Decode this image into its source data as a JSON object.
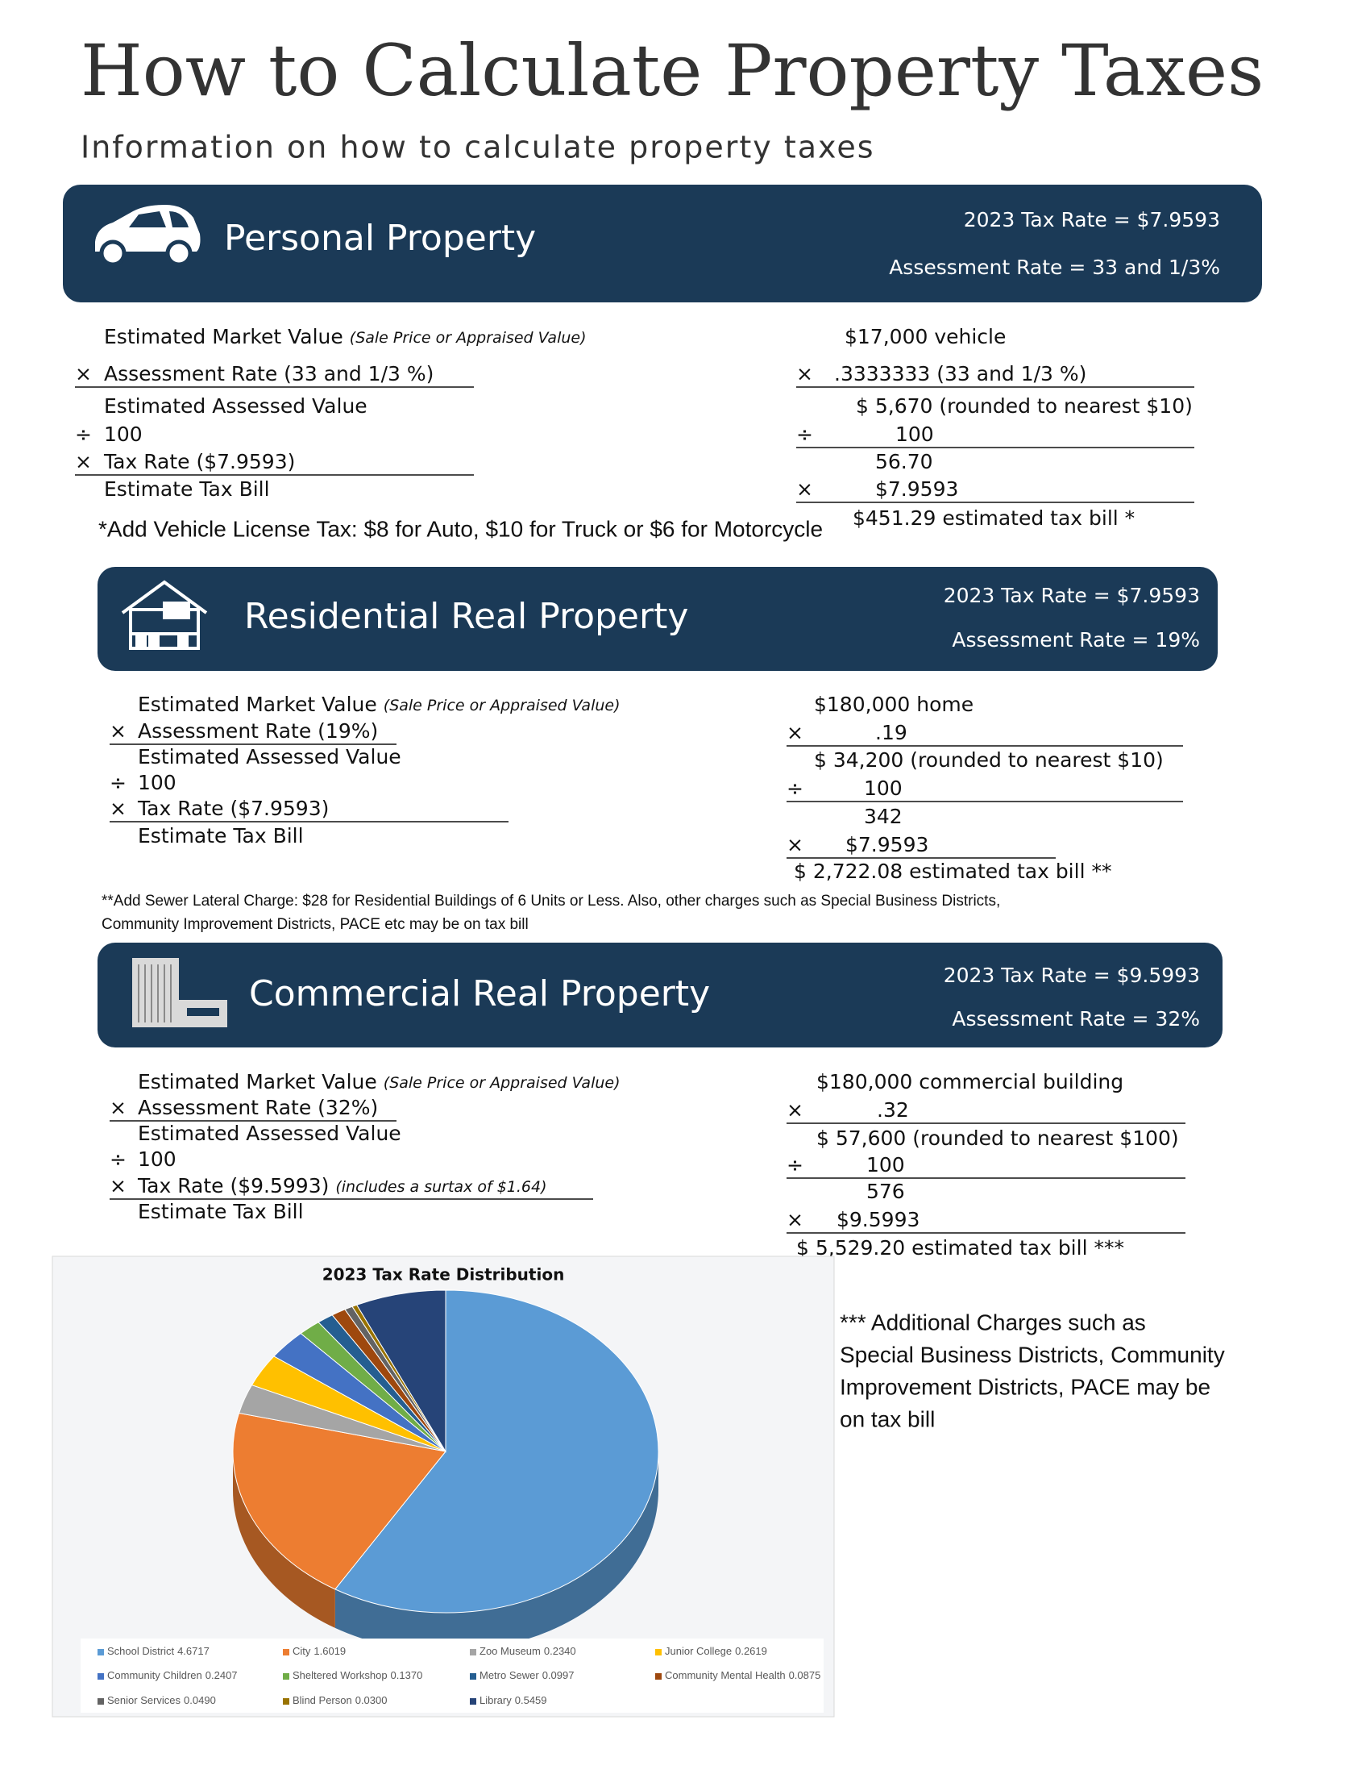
{
  "header": {
    "title": "How to Calculate Property Taxes",
    "subtitle": "Information on how to calculate property taxes"
  },
  "sections": [
    {
      "title": "Personal Property",
      "tax_rate": "2023 Tax Rate = $7.9593",
      "assessment_rate": "Assessment Rate = 33 and 1/3%",
      "left": [
        {
          "text": "Estimated Market Value",
          "note": "(Sale Price or Appraised Value)"
        },
        {
          "op": "×",
          "text": "Assessment Rate (33 and 1/3 %)"
        },
        {
          "text": "Estimated Assessed Value"
        },
        {
          "op": "÷",
          "text": "100"
        },
        {
          "op": "×",
          "text": "Tax Rate ($7.9593)"
        },
        {
          "text": "Estimate Tax Bill"
        }
      ],
      "right": [
        {
          "text": "$17,000 vehicle"
        },
        {
          "op": "×",
          "text": ".3333333 (33 and 1/3 %)"
        },
        {
          "text": "$ 5,670 (rounded to nearest $10)"
        },
        {
          "op": "÷",
          "text": "100"
        },
        {
          "text": "56.70"
        },
        {
          "op": "×",
          "text": "$7.9593"
        },
        {
          "text": "$451.29 estimated tax bill *"
        }
      ],
      "footnote": [
        "*Add Vehicle License Tax: $8 for Auto, $10 for Truck or $6 for Motorcycle"
      ]
    },
    {
      "title": "Residential Real Property",
      "tax_rate": "2023 Tax Rate = $7.9593",
      "assessment_rate": "Assessment Rate = 19%",
      "left": [
        {
          "text": "Estimated Market Value",
          "note": "(Sale Price or Appraised Value)"
        },
        {
          "op": "×",
          "text": "Assessment Rate (19%)"
        },
        {
          "text": "Estimated Assessed Value"
        },
        {
          "op": "÷",
          "text": "100"
        },
        {
          "op": "×",
          "text": "Tax Rate ($7.9593)"
        },
        {
          "text": "Estimate Tax Bill"
        }
      ],
      "right": [
        {
          "text": "$180,000 home"
        },
        {
          "op": "×",
          "text": ".19"
        },
        {
          "text": "$ 34,200 (rounded to nearest $10)"
        },
        {
          "op": "÷",
          "text": "100"
        },
        {
          "text": "342"
        },
        {
          "op": "×",
          "text": "$7.9593"
        },
        {
          "text": "$ 2,722.08 estimated tax bill **"
        }
      ],
      "footnote": [
        "**Add Sewer Lateral Charge: $28 for Residential Buildings of 6 Units or Less. Also, other charges such as Special Business Districts,",
        "Community Improvement Districts, PACE etc may be on tax bill"
      ]
    },
    {
      "title": "Commercial Real Property",
      "tax_rate": "2023 Tax Rate = $9.5993",
      "assessment_rate": "Assessment Rate = 32%",
      "left": [
        {
          "text": "Estimated Market Value",
          "note": "(Sale Price or Appraised Value)"
        },
        {
          "op": "×",
          "text": "Assessment Rate (32%)"
        },
        {
          "text": "Estimated Assessed Value"
        },
        {
          "op": "÷",
          "text": "100"
        },
        {
          "op": "×",
          "text": "Tax Rate ($9.5993)",
          "note": "(includes a surtax of $1.64)"
        },
        {
          "text": "Estimate Tax Bill"
        }
      ],
      "right": [
        {
          "text": "$180,000 commercial building"
        },
        {
          "op": "×",
          "text": ".32"
        },
        {
          "text": "$ 57,600 (rounded to nearest $100)"
        },
        {
          "op": "÷",
          "text": "100"
        },
        {
          "text": "576"
        },
        {
          "op": "×",
          "text": "$9.5993"
        },
        {
          "text": "$ 5,529.20 estimated tax bill ***"
        }
      ]
    }
  ],
  "chart_data": {
    "type": "pie",
    "title": "2023 Tax Rate Distribution",
    "categories": [
      "School District",
      "City",
      "Zoo Museum",
      "Junior College",
      "Community Children",
      "Sheltered Workshop",
      "Metro Sewer",
      "Community Mental Health",
      "Senior Services",
      "Blind Person",
      "Library"
    ],
    "values": [
      4.6717,
      1.6019,
      0.234,
      0.2619,
      0.2407,
      0.137,
      0.0997,
      0.0875,
      0.049,
      0.03,
      0.5459
    ],
    "value_labels": [
      "4.6717",
      "1.6019",
      "0.2340",
      "0.2619",
      "0.2407",
      "0.1370",
      "0.0997",
      "0.0875",
      "0.0490",
      "0.0300",
      "0.5459"
    ],
    "colors": [
      "#5b9bd5",
      "#ed7d31",
      "#a5a5a5",
      "#ffc000",
      "#4472c4",
      "#70ad47",
      "#255e91",
      "#9e480e",
      "#636363",
      "#997300",
      "#264478"
    ],
    "legend": "bottom"
  },
  "side_note": [
    "*** Additional Charges such as",
    "Special Business Districts, Community",
    "Improvement Districts, PACE may be",
    "on tax bill"
  ]
}
